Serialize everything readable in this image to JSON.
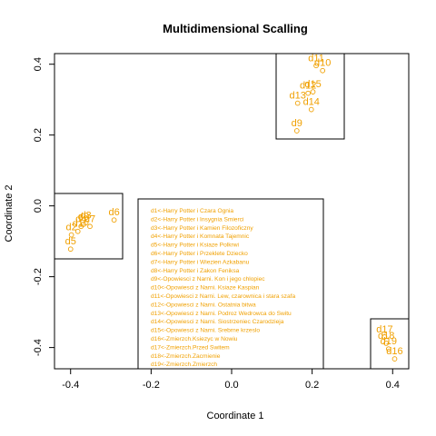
{
  "chart_data": {
    "type": "scatter",
    "title": "Multidimensional Scalling",
    "xlabel": "Coordinate 1",
    "ylabel": "Coordinate 2",
    "xlim": [
      -0.44,
      0.44
    ],
    "ylim": [
      -0.46,
      0.43
    ],
    "xticks": [
      -0.4,
      -0.2,
      0.0,
      0.2,
      0.4
    ],
    "xtick_labels": [
      "-0.4",
      "-0.2",
      "0.0",
      "0.2",
      "0.4"
    ],
    "yticks": [
      -0.4,
      -0.2,
      0.0,
      0.2,
      0.4
    ],
    "ytick_labels": [
      "-0.4",
      "-0.2",
      "0.0",
      "0.2",
      "0.4"
    ],
    "point_color": "#f0a000",
    "points": [
      {
        "label": "d1",
        "x": -0.382,
        "y": -0.072
      },
      {
        "label": "d2",
        "x": -0.398,
        "y": -0.082
      },
      {
        "label": "d3",
        "x": -0.362,
        "y": -0.048
      },
      {
        "label": "d4",
        "x": -0.374,
        "y": -0.058
      },
      {
        "label": "d5",
        "x": -0.4,
        "y": -0.122
      },
      {
        "label": "d6",
        "x": -0.292,
        "y": -0.04
      },
      {
        "label": "d7",
        "x": -0.352,
        "y": -0.058
      },
      {
        "label": "d8",
        "x": -0.368,
        "y": -0.052
      },
      {
        "label": "d9",
        "x": 0.162,
        "y": 0.212
      },
      {
        "label": "d10",
        "x": 0.226,
        "y": 0.382
      },
      {
        "label": "d11",
        "x": 0.21,
        "y": 0.396
      },
      {
        "label": "d12",
        "x": 0.19,
        "y": 0.318
      },
      {
        "label": "d13",
        "x": 0.164,
        "y": 0.29
      },
      {
        "label": "d14",
        "x": 0.198,
        "y": 0.272
      },
      {
        "label": "d15",
        "x": 0.202,
        "y": 0.322
      },
      {
        "label": "d16",
        "x": 0.405,
        "y": -0.432
      },
      {
        "label": "d17",
        "x": 0.38,
        "y": -0.37
      },
      {
        "label": "d18",
        "x": 0.384,
        "y": -0.388
      },
      {
        "label": "d19",
        "x": 0.39,
        "y": -0.404
      }
    ],
    "legend_position": "center",
    "legend": [
      "d1<-Harry Potter i Czara Ognia",
      "d2<-Harry Potter i Insygnia Smierci",
      "d3<-Harry Potter i Kamien Filozoficzny",
      "d4<-Harry Potter i Komnata Tajemnic",
      "d5<-Harry Potter i Ksiaze Polkrwi",
      "d6<-Harry Potter i Przeklete Dziecko",
      "d7<-Harry Potter i Wiezien Azkabanu",
      "d8<-Harry Potter i Zakon Feniksa",
      "d9<-Opowiesci z Narni. Kon i jego chlopiec",
      "d10<-Opowiesci z Narni. Ksiaze Kaspian",
      "d11<-Opowiesci z Narni. Lew, czarownica i stara szafa",
      "d12<-Opowiesci z Narni. Ostatnia bitwa",
      "d13<-Opowiesci z Narni. Podroz Wedrowca do Switu",
      "d14<-Opowiesci z Narni. Siostrzeniec Czarodzieja",
      "d15<-Opowiesci z Narni. Srebrne krzeslo",
      "d16<-Zmierzch.Ksiezyc w Nowiu",
      "d17<-Zmierzch.Przed Switem",
      "d18<-Zmierzch.Zacmienie",
      "d19<-Zmierzch.Zmierzch"
    ],
    "cluster_boxes": [
      {
        "name": "harry-potter",
        "x": [
          -0.44,
          -0.265
        ],
        "y": [
          -0.155,
          0.035
        ]
      },
      {
        "name": "narnia",
        "x": 0.105,
        "x_end": 0.275,
        "y": [
          0.185,
          0.42
        ]
      }
    ]
  }
}
